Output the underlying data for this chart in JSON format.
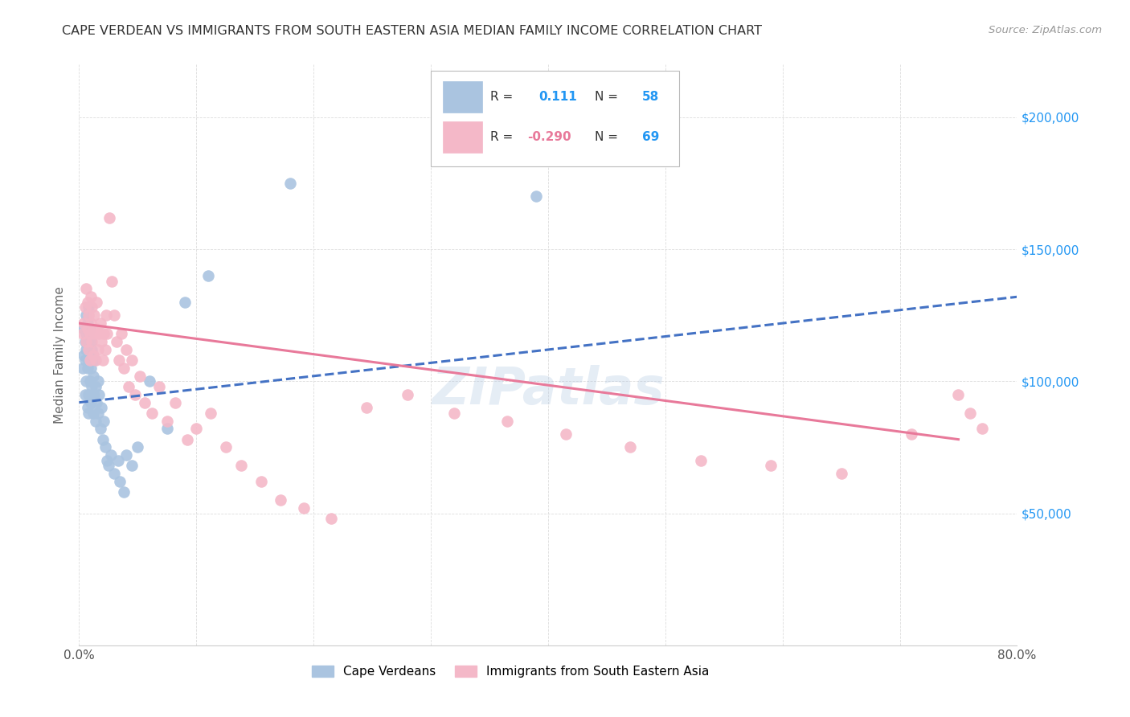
{
  "title": "CAPE VERDEAN VS IMMIGRANTS FROM SOUTH EASTERN ASIA MEDIAN FAMILY INCOME CORRELATION CHART",
  "source": "Source: ZipAtlas.com",
  "ylabel": "Median Family Income",
  "r1": 0.111,
  "n1": 58,
  "r2": -0.29,
  "n2": 69,
  "color_blue": "#aac4e0",
  "color_pink": "#f4b8c8",
  "line_blue": "#4472c4",
  "line_pink": "#e8799a",
  "watermark": "ZIPatlas",
  "yticks": [
    0,
    50000,
    100000,
    150000,
    200000
  ],
  "ytick_labels": [
    "",
    "$50,000",
    "$100,000",
    "$150,000",
    "$200,000"
  ],
  "xlim": [
    0.0,
    0.8
  ],
  "ylim": [
    0,
    220000
  ],
  "blue_scatter_x": [
    0.003,
    0.004,
    0.004,
    0.005,
    0.005,
    0.005,
    0.006,
    0.006,
    0.006,
    0.006,
    0.007,
    0.007,
    0.007,
    0.007,
    0.008,
    0.008,
    0.008,
    0.008,
    0.008,
    0.009,
    0.009,
    0.009,
    0.01,
    0.01,
    0.01,
    0.011,
    0.011,
    0.012,
    0.012,
    0.013,
    0.013,
    0.014,
    0.014,
    0.015,
    0.016,
    0.016,
    0.017,
    0.018,
    0.019,
    0.02,
    0.021,
    0.022,
    0.024,
    0.025,
    0.027,
    0.03,
    0.033,
    0.035,
    0.038,
    0.04,
    0.045,
    0.05,
    0.06,
    0.075,
    0.09,
    0.11,
    0.18,
    0.39
  ],
  "blue_scatter_y": [
    105000,
    110000,
    120000,
    95000,
    108000,
    115000,
    100000,
    112000,
    118000,
    125000,
    90000,
    105000,
    115000,
    122000,
    88000,
    95000,
    108000,
    118000,
    128000,
    100000,
    110000,
    120000,
    92000,
    105000,
    115000,
    98000,
    112000,
    88000,
    102000,
    95000,
    108000,
    85000,
    98000,
    92000,
    88000,
    100000,
    95000,
    82000,
    90000,
    78000,
    85000,
    75000,
    70000,
    68000,
    72000,
    65000,
    70000,
    62000,
    58000,
    72000,
    68000,
    75000,
    100000,
    82000,
    130000,
    140000,
    175000,
    170000
  ],
  "pink_scatter_x": [
    0.003,
    0.004,
    0.005,
    0.006,
    0.006,
    0.007,
    0.007,
    0.008,
    0.008,
    0.009,
    0.009,
    0.01,
    0.01,
    0.011,
    0.011,
    0.012,
    0.013,
    0.013,
    0.014,
    0.015,
    0.015,
    0.016,
    0.017,
    0.018,
    0.019,
    0.02,
    0.021,
    0.022,
    0.023,
    0.024,
    0.026,
    0.028,
    0.03,
    0.032,
    0.034,
    0.036,
    0.038,
    0.04,
    0.042,
    0.045,
    0.048,
    0.052,
    0.056,
    0.062,
    0.068,
    0.075,
    0.082,
    0.092,
    0.1,
    0.112,
    0.125,
    0.138,
    0.155,
    0.172,
    0.192,
    0.215,
    0.245,
    0.28,
    0.32,
    0.365,
    0.415,
    0.47,
    0.53,
    0.59,
    0.65,
    0.71,
    0.75,
    0.76,
    0.77
  ],
  "pink_scatter_y": [
    118000,
    122000,
    128000,
    115000,
    135000,
    120000,
    130000,
    112000,
    125000,
    108000,
    118000,
    122000,
    132000,
    115000,
    128000,
    110000,
    118000,
    125000,
    108000,
    120000,
    130000,
    112000,
    118000,
    122000,
    115000,
    108000,
    118000,
    112000,
    125000,
    118000,
    162000,
    138000,
    125000,
    115000,
    108000,
    118000,
    105000,
    112000,
    98000,
    108000,
    95000,
    102000,
    92000,
    88000,
    98000,
    85000,
    92000,
    78000,
    82000,
    88000,
    75000,
    68000,
    62000,
    55000,
    52000,
    48000,
    90000,
    95000,
    88000,
    85000,
    80000,
    75000,
    70000,
    68000,
    65000,
    80000,
    95000,
    88000,
    82000
  ]
}
